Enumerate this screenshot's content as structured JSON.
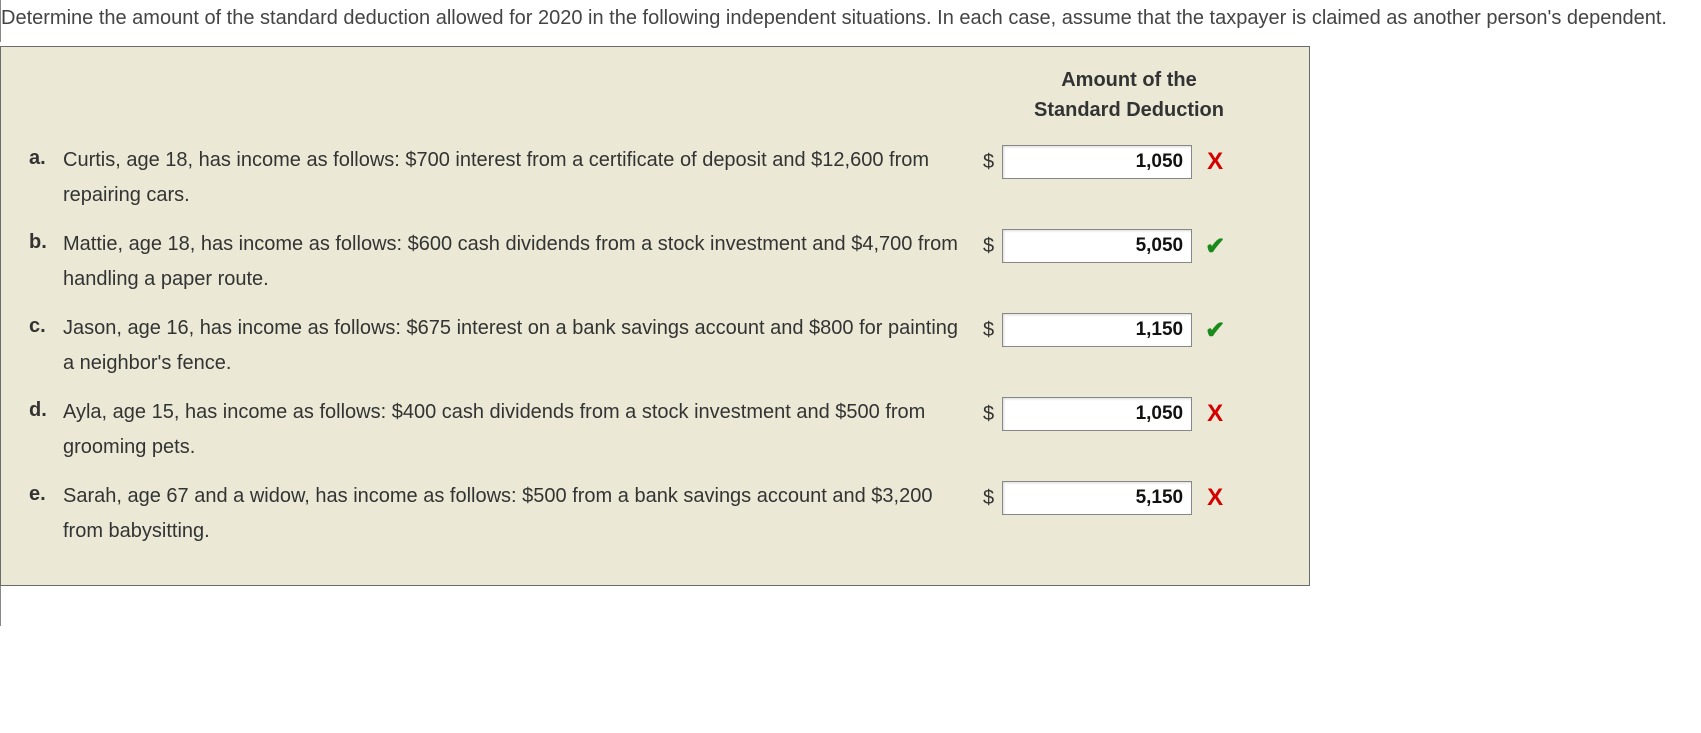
{
  "question_text": "Determine the amount of the standard deduction allowed for 2020 in the following independent situations. In each case, assume that the taxpayer is claimed as another person's dependent.",
  "column_header": "Amount of the\nStandard Deduction",
  "currency_symbol": "$",
  "items": [
    {
      "label": "a.",
      "text": "Curtis, age 18, has income as follows: $700 interest from a certificate of deposit and $12,600 from repairing cars.",
      "value": "1,050",
      "correct": false
    },
    {
      "label": "b.",
      "text": "Mattie, age 18, has income as follows: $600 cash dividends from a stock investment and $4,700 from handling a paper route.",
      "value": "5,050",
      "correct": true
    },
    {
      "label": "c.",
      "text": "Jason, age 16, has income as follows: $675 interest on a bank savings account and $800 for painting a neighbor's fence.",
      "value": "1,150",
      "correct": true
    },
    {
      "label": "d.",
      "text": "Ayla, age 15, has income as follows: $400 cash dividends from a stock investment and $500 from grooming pets.",
      "value": "1,050",
      "correct": false
    },
    {
      "label": "e.",
      "text": "Sarah, age 67 and a widow, has income as follows: $500 from a bank savings account and $3,200 from babysitting.",
      "value": "5,150",
      "correct": false
    }
  ],
  "marks": {
    "wrong_glyph": "✗",
    "correct_glyph": "✔"
  },
  "colors": {
    "panel_bg": "#ebe9d6",
    "wrong": "#d40000",
    "correct": "#1a8a1a"
  }
}
